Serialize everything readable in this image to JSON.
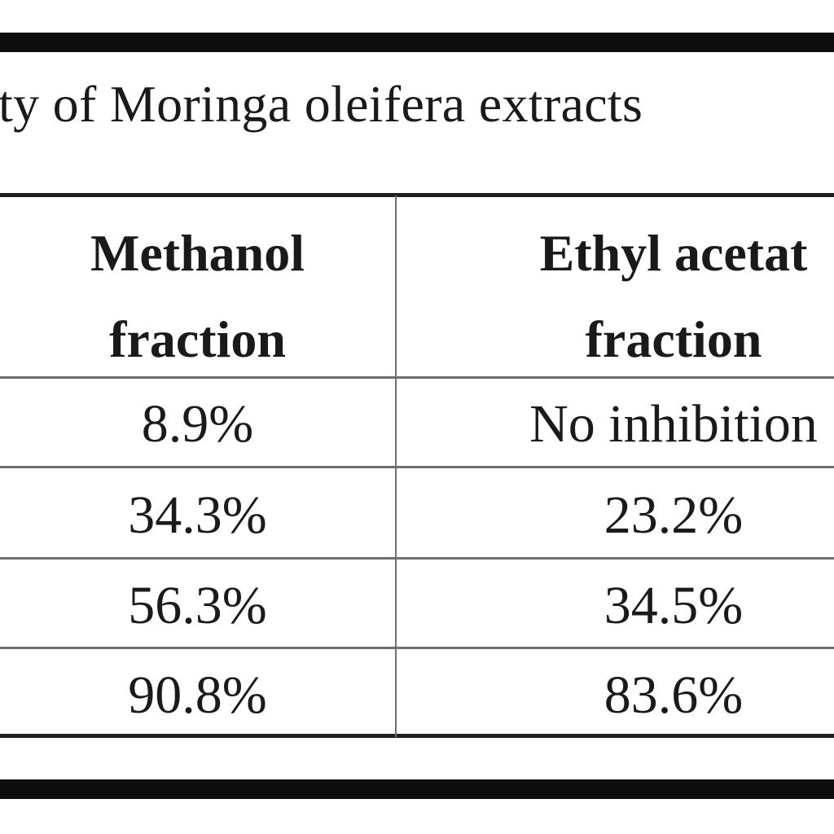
{
  "caption": "ty of Moringa oleifera extracts",
  "table": {
    "headers": [
      {
        "line1": "Methanol",
        "line2": "fraction"
      },
      {
        "line1": "Ethyl acetat",
        "line2": "fraction"
      }
    ],
    "rows": [
      [
        "8.9%",
        "No inhibition"
      ],
      [
        "34.3%",
        "23.2%"
      ],
      [
        "56.3%",
        "34.5%"
      ],
      [
        "90.8%",
        "83.6%"
      ]
    ]
  }
}
